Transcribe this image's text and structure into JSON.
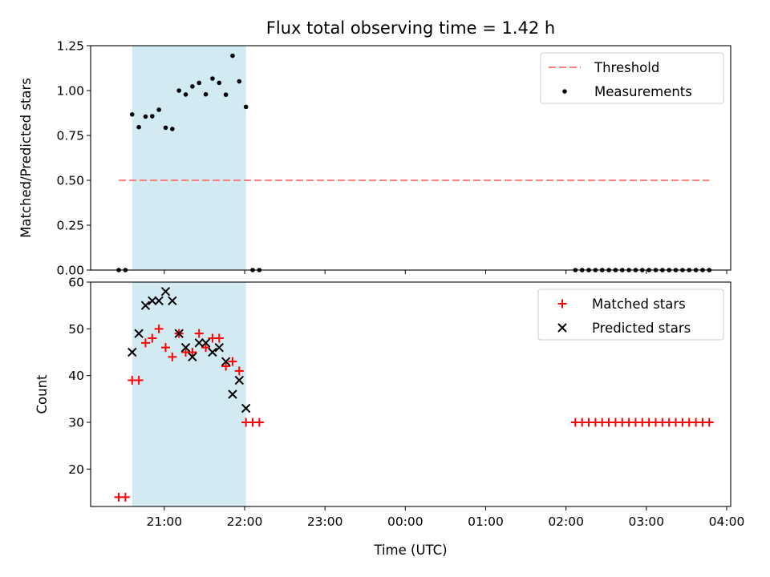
{
  "chart_data": {
    "type": "scatter",
    "title": "Flux total observing time = 1.42 h",
    "xlabel": "Time (UTC)",
    "x_ticks": [
      "21:00",
      "22:00",
      "23:00",
      "00:00",
      "01:00",
      "02:00",
      "03:00",
      "04:00"
    ],
    "x_range": [
      "20:05",
      "04:03"
    ],
    "x_tick_minutes": [
      60,
      120,
      180,
      240,
      300,
      360,
      420,
      480
    ],
    "x_range_minutes": [
      5,
      483
    ],
    "shaded_span": [
      "20:36",
      "22:01"
    ],
    "shaded_span_minutes": [
      36,
      121
    ],
    "shaded_color": "#add8e6",
    "panels": [
      {
        "id": "ratio",
        "ylabel": "Matched/Predicted stars",
        "ylim": [
          0,
          1.25
        ],
        "y_ticks": [
          "0.00",
          "0.25",
          "0.50",
          "0.75",
          "1.00",
          "1.25"
        ],
        "y_tick_values": [
          0,
          0.25,
          0.5,
          0.75,
          1.0,
          1.25
        ],
        "legend_position": "top-right",
        "series": [
          {
            "name": "Threshold",
            "kind": "dashed-line",
            "color": "#ff7f7f",
            "x": [
              26,
              467
            ],
            "y": [
              0.5,
              0.5
            ]
          },
          {
            "name": "Measurements",
            "kind": "dots",
            "color": "#000000",
            "x": [
              26,
              31,
              36,
              41,
              46,
              51,
              56,
              61,
              66,
              71,
              76,
              81,
              86,
              91,
              96,
              101,
              106,
              111,
              116,
              121,
              126,
              131,
              367,
              372,
              377,
              382,
              387,
              392,
              397,
              402,
              407,
              412,
              417,
              422,
              427,
              432,
              437,
              442,
              447,
              452,
              457,
              462,
              467
            ],
            "y": [
              0,
              0,
              0.867,
              0.796,
              0.855,
              0.857,
              0.893,
              0.793,
              0.786,
              1.0,
              0.978,
              1.023,
              1.043,
              0.979,
              1.067,
              1.043,
              0.977,
              1.194,
              1.051,
              0.909,
              0,
              0,
              0,
              0,
              0,
              0,
              0,
              0,
              0,
              0,
              0,
              0,
              0,
              0,
              0,
              0,
              0,
              0,
              0,
              0,
              0,
              0,
              0
            ]
          }
        ]
      },
      {
        "id": "counts",
        "ylabel": "Count",
        "ylim": [
          12,
          60
        ],
        "y_ticks": [
          "20",
          "30",
          "40",
          "50",
          "60"
        ],
        "y_tick_values": [
          20,
          30,
          40,
          50,
          60
        ],
        "legend_position": "top-right",
        "series": [
          {
            "name": "Matched stars",
            "kind": "plus",
            "color": "#ff0000",
            "x": [
              26,
              31,
              36,
              41,
              46,
              51,
              56,
              61,
              66,
              71,
              76,
              81,
              86,
              91,
              96,
              101,
              106,
              111,
              116,
              121,
              126,
              131,
              367,
              372,
              377,
              382,
              387,
              392,
              397,
              402,
              407,
              412,
              417,
              422,
              427,
              432,
              437,
              442,
              447,
              452,
              457,
              462,
              467
            ],
            "y": [
              14,
              14,
              39,
              39,
              47,
              48,
              50,
              46,
              44,
              49,
              45,
              45,
              49,
              46,
              48,
              48,
              42,
              43,
              41,
              30,
              30,
              30,
              30,
              30,
              30,
              30,
              30,
              30,
              30,
              30,
              30,
              30,
              30,
              30,
              30,
              30,
              30,
              30,
              30,
              30,
              30,
              30,
              30
            ]
          },
          {
            "name": "Predicted stars",
            "kind": "x",
            "color": "#000000",
            "x": [
              36,
              41,
              46,
              51,
              56,
              61,
              66,
              71,
              76,
              81,
              86,
              91,
              96,
              101,
              106,
              111,
              116,
              121
            ],
            "y": [
              45,
              49,
              55,
              56,
              56,
              58,
              56,
              49,
              46,
              44,
              47,
              47,
              45,
              46,
              43,
              36,
              39,
              33
            ]
          }
        ]
      }
    ]
  }
}
